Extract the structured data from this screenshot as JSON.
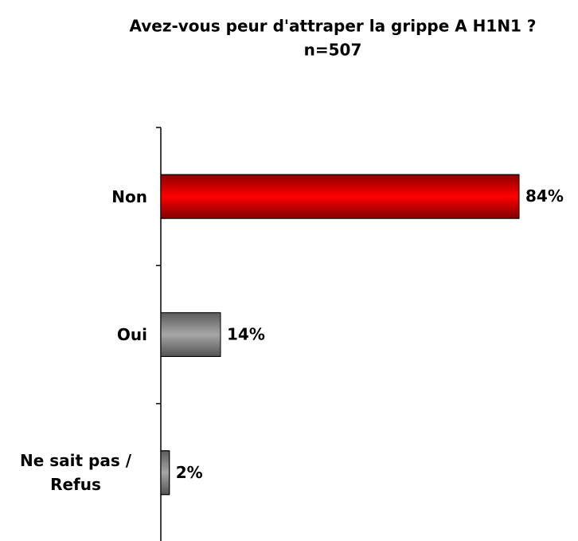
{
  "chart_data": {
    "type": "bar",
    "orientation": "horizontal",
    "title": "Avez-vous peur d'attraper la grippe A H1N1 ?",
    "subtitle": "n=507",
    "categories": [
      "Non",
      "Oui",
      "Ne sait pas / Refus"
    ],
    "values": [
      84,
      14,
      2
    ],
    "value_labels": [
      "84%",
      "14%",
      "2%"
    ],
    "colors": [
      "#ff0000",
      "#a6a6a6",
      "#a6a6a6"
    ]
  }
}
